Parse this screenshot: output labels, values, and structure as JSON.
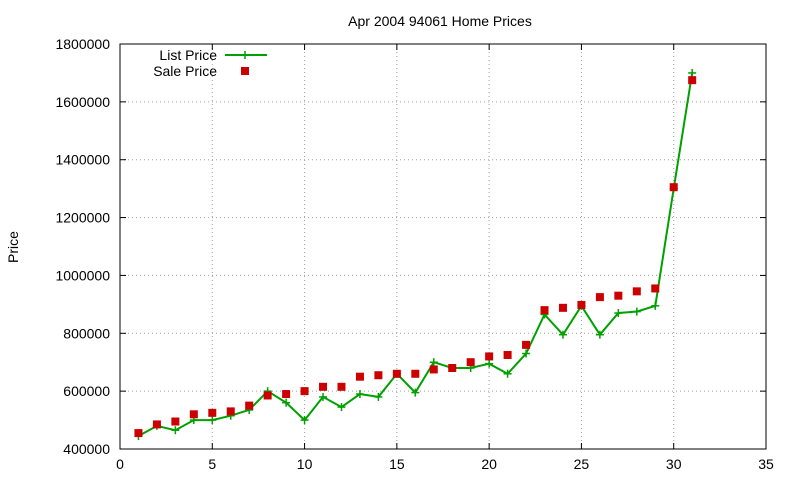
{
  "chart_data": {
    "type": "line",
    "title": "Apr 2004 94061 Home Prices",
    "xlabel": "",
    "ylabel": "Price",
    "xlim": [
      0,
      35
    ],
    "ylim": [
      400000,
      1800000
    ],
    "x_ticks": [
      0,
      5,
      10,
      15,
      20,
      25,
      30,
      35
    ],
    "y_ticks": [
      400000,
      600000,
      800000,
      1000000,
      1200000,
      1400000,
      1600000,
      1800000
    ],
    "grid": true,
    "legend_position": "top-left",
    "series": [
      {
        "name": "List Price",
        "style": "line-with-plus-markers",
        "color": "#00a000",
        "x": [
          1,
          2,
          3,
          4,
          5,
          6,
          7,
          8,
          9,
          10,
          11,
          12,
          13,
          14,
          15,
          16,
          17,
          18,
          19,
          20,
          21,
          22,
          23,
          24,
          25,
          26,
          27,
          28,
          29,
          30,
          31
        ],
        "y": [
          445000,
          480000,
          465000,
          500000,
          500000,
          515000,
          535000,
          600000,
          560000,
          500000,
          580000,
          545000,
          590000,
          580000,
          660000,
          595000,
          700000,
          680000,
          680000,
          695000,
          660000,
          730000,
          865000,
          795000,
          895000,
          795000,
          870000,
          875000,
          895000,
          1300000,
          1700000
        ]
      },
      {
        "name": "Sale Price",
        "style": "square-markers",
        "color": "#cc0000",
        "x": [
          1,
          2,
          3,
          4,
          5,
          6,
          7,
          8,
          9,
          10,
          11,
          12,
          13,
          14,
          15,
          16,
          17,
          18,
          19,
          20,
          21,
          22,
          23,
          24,
          25,
          26,
          27,
          28,
          29,
          30,
          31
        ],
        "y": [
          455000,
          485000,
          495000,
          520000,
          525000,
          530000,
          550000,
          585000,
          590000,
          600000,
          615000,
          615000,
          650000,
          655000,
          660000,
          660000,
          675000,
          680000,
          700000,
          720000,
          725000,
          760000,
          880000,
          888000,
          898000,
          925000,
          930000,
          945000,
          955000,
          1305000,
          1675000
        ]
      }
    ]
  }
}
